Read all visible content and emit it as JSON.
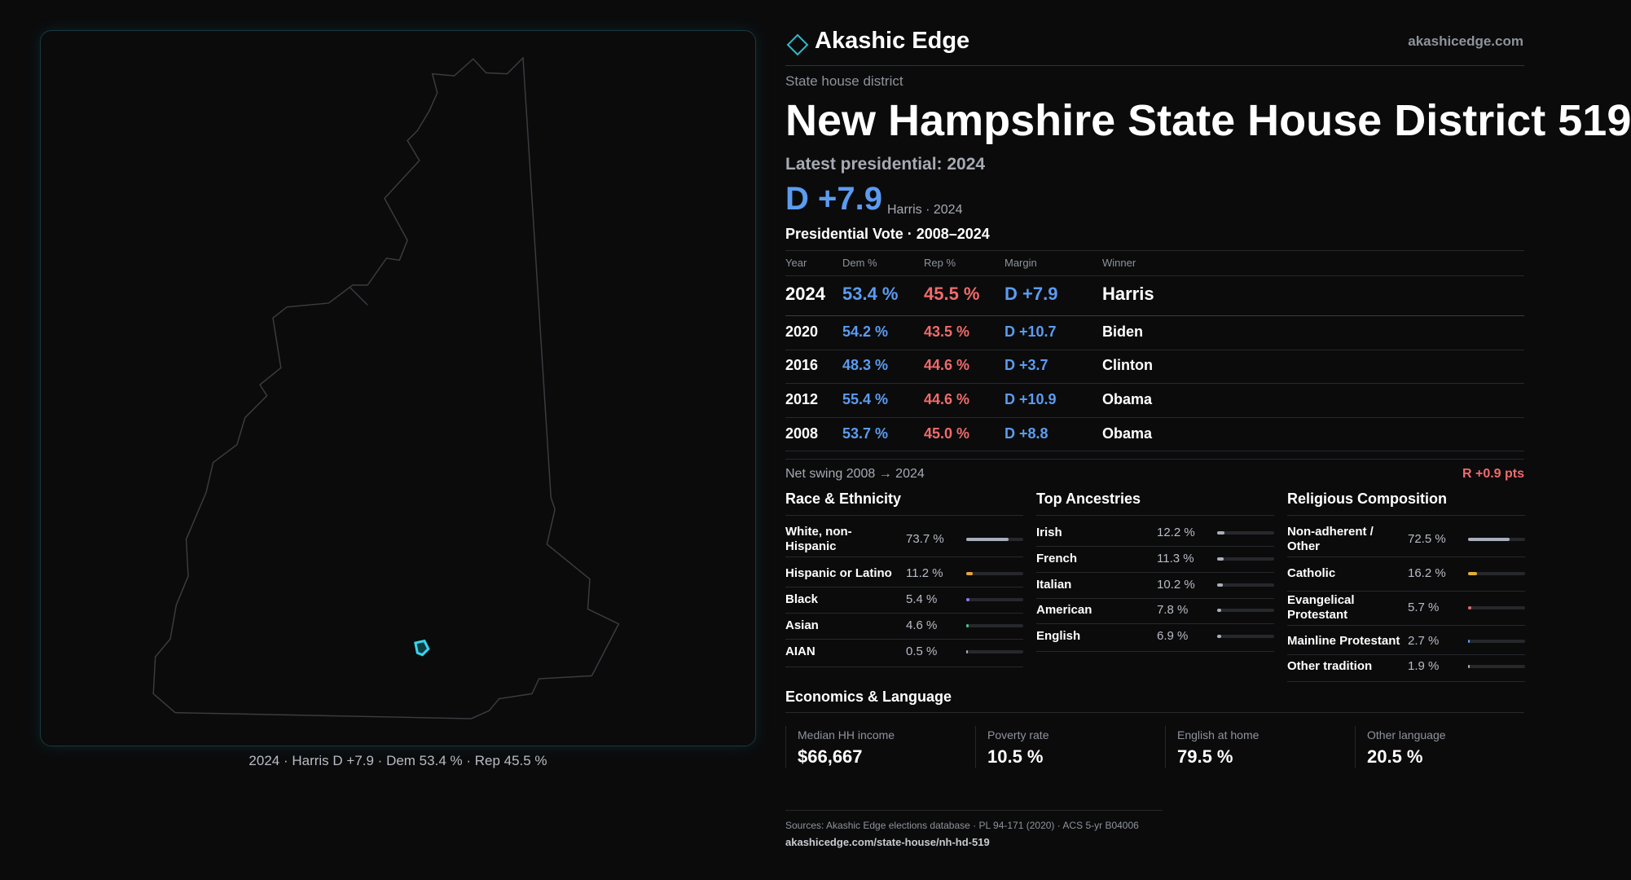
{
  "header": {
    "brand": "Akashic Edge",
    "site": "akashicedge.com"
  },
  "kind": "State house district",
  "title": "New Hampshire State House District 519",
  "latest": "Latest presidential: 2024",
  "margin": "D +7.9",
  "margin_note": "Harris · 2024",
  "map_caption": "2024 · Harris D +7.9 · Dem 53.4 % · Rep 45.5 %",
  "table": {
    "title": "Presidential Vote · 2008–2024",
    "columns": [
      "Year",
      "Dem %",
      "Rep %",
      "Margin",
      "Winner"
    ],
    "rows": [
      [
        "2024",
        "53.4 %",
        "45.5 %",
        "D +7.9",
        "Harris"
      ],
      [
        "2020",
        "54.2 %",
        "43.5 %",
        "D +10.7",
        "Biden"
      ],
      [
        "2016",
        "48.3 %",
        "44.6 %",
        "D +3.7",
        "Clinton"
      ],
      [
        "2012",
        "55.4 %",
        "44.6 %",
        "D +10.9",
        "Obama"
      ],
      [
        "2008",
        "53.7 %",
        "45.0 %",
        "D +8.8",
        "Obama"
      ]
    ]
  },
  "swing": {
    "label": "Net swing 2008 → 2024",
    "value": "R +0.9 pts"
  },
  "race": {
    "title": "Race & Ethnicity",
    "rows": [
      {
        "label": "White, non-Hispanic",
        "value": 73.7,
        "value_label": "73.7 %",
        "color": "#a9afbb"
      },
      {
        "label": "Hispanic or Latino",
        "value": 11.2,
        "value_label": "11.2 %",
        "color": "#e8a33a"
      },
      {
        "label": "Black",
        "value": 5.4,
        "value_label": "5.4 %",
        "color": "#8a7cf0"
      },
      {
        "label": "Asian",
        "value": 4.6,
        "value_label": "4.6 %",
        "color": "#3cc98a"
      },
      {
        "label": "AIAN",
        "value": 0.5,
        "value_label": "0.5 %",
        "color": "#a9afbb"
      }
    ]
  },
  "ancestry": {
    "title": "Top Ancestries",
    "rows": [
      {
        "label": "Irish",
        "value": 12.2,
        "value_label": "12.2 %",
        "color": "#a9afbb"
      },
      {
        "label": "French",
        "value": 11.3,
        "value_label": "11.3 %",
        "color": "#a9afbb"
      },
      {
        "label": "Italian",
        "value": 10.2,
        "value_label": "10.2 %",
        "color": "#a9afbb"
      },
      {
        "label": "American",
        "value": 7.8,
        "value_label": "7.8 %",
        "color": "#a9afbb"
      },
      {
        "label": "English",
        "value": 6.9,
        "value_label": "6.9 %",
        "color": "#a9afbb"
      }
    ]
  },
  "religion": {
    "title": "Religious Composition",
    "rows": [
      {
        "label": "Non-adherent / Other",
        "value": 72.5,
        "value_label": "72.5 %",
        "color": "#a9afbb"
      },
      {
        "label": "Catholic",
        "value": 16.2,
        "value_label": "16.2 %",
        "color": "#e0b030"
      },
      {
        "label": "Evangelical Protestant",
        "value": 5.7,
        "value_label": "5.7 %",
        "color": "#e06a6a"
      },
      {
        "label": "Mainline Protestant",
        "value": 2.7,
        "value_label": "2.7 %",
        "color": "#5b9cf0"
      },
      {
        "label": "Other tradition",
        "value": 1.9,
        "value_label": "1.9 %",
        "color": "#a9afbb"
      }
    ]
  },
  "economics": {
    "title": "Economics & Language",
    "items": [
      {
        "label": "Median HH income",
        "value": "$66,667"
      },
      {
        "label": "Poverty rate",
        "value": "10.5 %"
      },
      {
        "label": "English at home",
        "value": "79.5 %"
      },
      {
        "label": "Other language",
        "value": "20.5 %"
      }
    ]
  },
  "sources": "Sources: Akashic Edge elections database · PL 94-171 (2020) · ACS 5-yr B04006",
  "url": "akashicedge.com/state-house/nh-hd-519"
}
